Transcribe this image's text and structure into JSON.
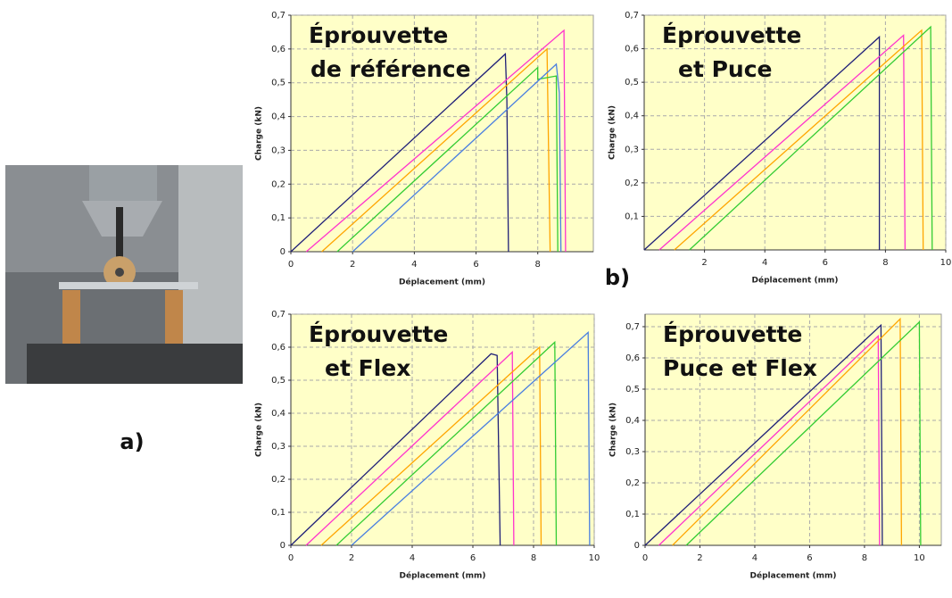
{
  "figure_labels": [
    "a)",
    "b)"
  ],
  "chart_data": [
    {
      "type": "line",
      "annotation": [
        "Éprouvette",
        "de référence"
      ],
      "x_label": "Déplacement (mm)",
      "y_label": "Charge (kN)",
      "xlim": [
        0,
        9.8
      ],
      "ylim": [
        0,
        0.7
      ],
      "xticks": [
        0,
        2,
        4,
        6,
        8
      ],
      "yticks": [
        {
          "value": 0,
          "label": "0"
        },
        {
          "value": 0.1,
          "label": "0,1"
        },
        {
          "value": 0.2,
          "label": "0,2"
        },
        {
          "value": 0.3,
          "label": "0,3"
        },
        {
          "value": 0.4,
          "label": "0,4"
        },
        {
          "value": 0.5,
          "label": "0,5"
        },
        {
          "value": 0.6,
          "label": "0,6"
        },
        {
          "value": 0.7,
          "label": "0,7"
        }
      ],
      "grid": true,
      "series": [
        {
          "color": "#1f1f78",
          "x": [
            0,
            6.95,
            7.0,
            7.05
          ],
          "values": [
            0,
            0.585,
            0.45,
            0
          ]
        },
        {
          "color": "#ff33cc",
          "x": [
            0.5,
            8.85,
            8.9
          ],
          "values": [
            0,
            0.655,
            0
          ]
        },
        {
          "color": "#ffa500",
          "x": [
            1,
            8.3,
            8.4
          ],
          "values": [
            0,
            0.6,
            0
          ]
        },
        {
          "color": "#33cc33",
          "x": [
            1.5,
            8.0,
            8.0,
            8.6,
            8.65
          ],
          "values": [
            0,
            0.545,
            0.51,
            0.52,
            0
          ]
        },
        {
          "color": "#4a7fe0",
          "x": [
            2,
            8.6,
            8.7,
            8.75
          ],
          "values": [
            0,
            0.555,
            0.47,
            0
          ]
        }
      ]
    },
    {
      "type": "line",
      "annotation": [
        "Éprouvette",
        "et Puce"
      ],
      "x_label": "Déplacement (mm)",
      "y_label": "Charge (kN)",
      "xlim": [
        0,
        10
      ],
      "ylim": [
        0,
        0.7
      ],
      "xticks": [
        2,
        4,
        6,
        8,
        10
      ],
      "yticks": [
        {
          "value": 0.1,
          "label": "0,1"
        },
        {
          "value": 0.2,
          "label": "0,2"
        },
        {
          "value": 0.3,
          "label": "0,3"
        },
        {
          "value": 0.4,
          "label": "0,4"
        },
        {
          "value": 0.5,
          "label": "0,5"
        },
        {
          "value": 0.6,
          "label": "0,6"
        },
        {
          "value": 0.7,
          "label": "0,7"
        }
      ],
      "grid": true,
      "series": [
        {
          "color": "#1f1f78",
          "x": [
            0,
            7.8,
            7.8
          ],
          "values": [
            0,
            0.635,
            0
          ]
        },
        {
          "color": "#ff33cc",
          "x": [
            0.5,
            8.6,
            8.65
          ],
          "values": [
            0,
            0.64,
            0
          ]
        },
        {
          "color": "#ffa500",
          "x": [
            1,
            9.2,
            9.25
          ],
          "values": [
            0,
            0.655,
            0
          ]
        },
        {
          "color": "#33cc33",
          "x": [
            1.5,
            9.5,
            9.55
          ],
          "values": [
            0,
            0.665,
            0
          ]
        }
      ]
    },
    {
      "type": "line",
      "annotation": [
        "Éprouvette",
        "et Flex"
      ],
      "x_label": "Déplacement (mm)",
      "y_label": "Charge (kN)",
      "xlim": [
        0,
        10
      ],
      "ylim": [
        0,
        0.7
      ],
      "xticks": [
        0,
        2,
        4,
        6,
        8,
        10
      ],
      "yticks": [
        {
          "value": 0,
          "label": "0"
        },
        {
          "value": 0.1,
          "label": "0,1"
        },
        {
          "value": 0.2,
          "label": "0,2"
        },
        {
          "value": 0.3,
          "label": "0,3"
        },
        {
          "value": 0.4,
          "label": "0,4"
        },
        {
          "value": 0.5,
          "label": "0,5"
        },
        {
          "value": 0.6,
          "label": "0,6"
        },
        {
          "value": 0.7,
          "label": "0,7"
        }
      ],
      "grid": true,
      "series": [
        {
          "color": "#1f1f78",
          "x": [
            0,
            6.6,
            6.8,
            6.9
          ],
          "values": [
            0,
            0.58,
            0.575,
            0
          ]
        },
        {
          "color": "#ff33cc",
          "x": [
            0.5,
            7.3,
            7.35
          ],
          "values": [
            0,
            0.585,
            0
          ]
        },
        {
          "color": "#ffa500",
          "x": [
            1,
            8.2,
            8.25
          ],
          "values": [
            0,
            0.6,
            0
          ]
        },
        {
          "color": "#33cc33",
          "x": [
            1.5,
            8.7,
            8.75
          ],
          "values": [
            0,
            0.615,
            0
          ]
        },
        {
          "color": "#4a7fe0",
          "x": [
            2,
            9.8,
            9.85
          ],
          "values": [
            0,
            0.645,
            0
          ]
        }
      ]
    },
    {
      "type": "line",
      "annotation": [
        "Éprouvette",
        "Puce et Flex"
      ],
      "x_label": "Déplacement (mm)",
      "y_label": "Charge (kN)",
      "xlim": [
        0,
        10.8
      ],
      "ylim": [
        0,
        0.74
      ],
      "xticks": [
        0,
        2,
        4,
        6,
        8,
        10
      ],
      "yticks": [
        {
          "value": 0,
          "label": "0"
        },
        {
          "value": 0.1,
          "label": "0,1"
        },
        {
          "value": 0.2,
          "label": "0,2"
        },
        {
          "value": 0.3,
          "label": "0,3"
        },
        {
          "value": 0.4,
          "label": "0,4"
        },
        {
          "value": 0.5,
          "label": "0,5"
        },
        {
          "value": 0.6,
          "label": "0,6"
        },
        {
          "value": 0.7,
          "label": "0,7"
        }
      ],
      "grid": true,
      "series": [
        {
          "color": "#1f1f78",
          "x": [
            0,
            8.6,
            8.65
          ],
          "values": [
            0,
            0.705,
            0
          ]
        },
        {
          "color": "#ff33cc",
          "x": [
            0.5,
            8.5,
            8.55
          ],
          "values": [
            0,
            0.67,
            0
          ]
        },
        {
          "color": "#ffa500",
          "x": [
            1,
            9.3,
            9.35
          ],
          "values": [
            0,
            0.725,
            0
          ]
        },
        {
          "color": "#33cc33",
          "x": [
            1.5,
            10.0,
            10.05
          ],
          "values": [
            0,
            0.715,
            0
          ]
        }
      ]
    }
  ]
}
